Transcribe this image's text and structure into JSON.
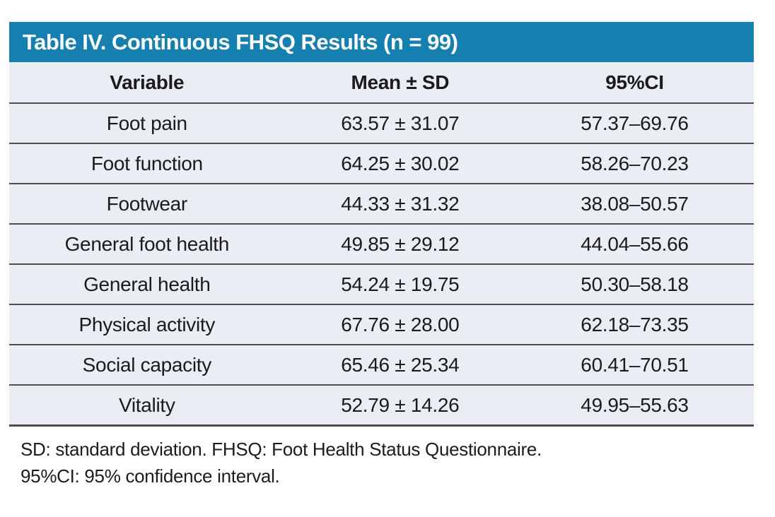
{
  "colors": {
    "title_bar_bg": "#1580b0",
    "title_text": "#ffffff",
    "row_bg": "#eaedf4",
    "rule_line": "#4e4e4e",
    "body_text": "#1b1b1b"
  },
  "table": {
    "title": "Table IV. Continuous FHSQ Results (n = 99)",
    "columns": {
      "variable": "Variable",
      "mean_sd": "Mean ± SD",
      "ci": "95%CI"
    },
    "rows": [
      {
        "variable": "Foot pain",
        "mean_sd": "63.57 ± 31.07",
        "ci": "57.37–69.76"
      },
      {
        "variable": "Foot function",
        "mean_sd": "64.25 ± 30.02",
        "ci": "58.26–70.23"
      },
      {
        "variable": "Footwear",
        "mean_sd": "44.33 ± 31.32",
        "ci": "38.08–50.57"
      },
      {
        "variable": "General foot health",
        "mean_sd": "49.85 ± 29.12",
        "ci": "44.04–55.66"
      },
      {
        "variable": "General health",
        "mean_sd": "54.24 ± 19.75",
        "ci": "50.30–58.18"
      },
      {
        "variable": "Physical activity",
        "mean_sd": "67.76 ± 28.00",
        "ci": "62.18–73.35"
      },
      {
        "variable": "Social capacity",
        "mean_sd": "65.46 ± 25.34",
        "ci": "60.41–70.51"
      },
      {
        "variable": "Vitality",
        "mean_sd": "52.79 ± 14.26",
        "ci": "49.95–55.63"
      }
    ],
    "footnotes": [
      "SD: standard deviation. FHSQ: Foot Health Status Questionnaire.",
      "95%CI: 95% confidence interval."
    ]
  }
}
